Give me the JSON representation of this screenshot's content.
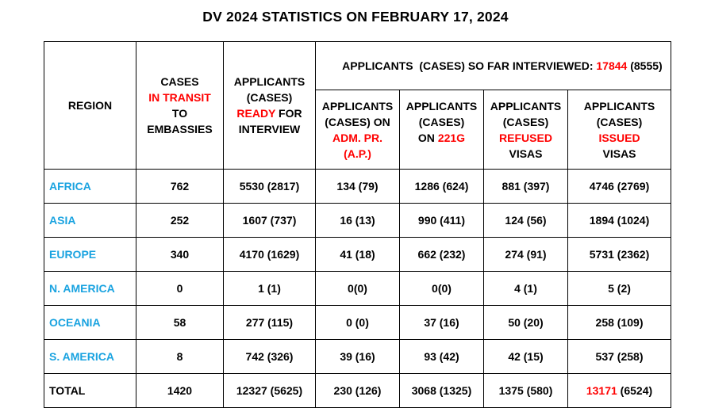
{
  "title": "DV 2024 STATISTICS ON FEBRUARY 17, 2024",
  "headers": {
    "region": "REGION",
    "transit": {
      "l1": "CASES",
      "l2": "IN TRANSIT",
      "l3": "TO",
      "l4": "EMBASSIES"
    },
    "ready": {
      "l1": "APPLICANTS",
      "l2": "(CASES)",
      "l3a": "READY",
      "l3b": " FOR",
      "l4": "INTERVIEW"
    },
    "interviewed": {
      "prefix": "APPLICANTS  (CASES) SO FAR INTERVIEWED: ",
      "value": "17844",
      "suffix": " (8555)"
    },
    "ap": {
      "l1": "APPLICANTS",
      "l2": "(CASES) ON",
      "l3": "ADM. PR.",
      "l4": "(A.P.)"
    },
    "g221": {
      "l1": "APPLICANTS",
      "l2": "(CASES)",
      "l3a": "ON ",
      "l3b": "221G"
    },
    "refused": {
      "l1": "APPLICANTS",
      "l2": "(CASES)",
      "l3": "REFUSED",
      "l4": "VISAS"
    },
    "issued": {
      "l1": "APPLICANTS",
      "l2": "(CASES)",
      "l3": "ISSUED",
      "l4": "VISAS"
    }
  },
  "rows": [
    {
      "region": "AFRICA",
      "transit": "762",
      "ready": "5530 (2817)",
      "ap": "134 (79)",
      "g221": "1286 (624)",
      "refused": "881 (397)",
      "issued": "4746 (2769)"
    },
    {
      "region": "ASIA",
      "transit": "252",
      "ready": "1607 (737)",
      "ap": "16 (13)",
      "g221": "990 (411)",
      "refused": "124 (56)",
      "issued": "1894 (1024)"
    },
    {
      "region": "EUROPE",
      "transit": "340",
      "ready": "4170 (1629)",
      "ap": "41 (18)",
      "g221": "662 (232)",
      "refused": "274 (91)",
      "issued": "5731 (2362)"
    },
    {
      "region": "N. AMERICA",
      "transit": "0",
      "ready": "1 (1)",
      "ap": "0(0)",
      "g221": "0(0)",
      "refused": "4 (1)",
      "issued": "5 (2)"
    },
    {
      "region": "OCEANIA",
      "transit": "58",
      "ready": "277 (115)",
      "ap": "0 (0)",
      "g221": "37 (16)",
      "refused": "50 (20)",
      "issued": "258 (109)"
    },
    {
      "region": "S. AMERICA",
      "transit": "8",
      "ready": "742 (326)",
      "ap": "39 (16)",
      "g221": "93 (42)",
      "refused": "42 (15)",
      "issued": "537 (258)"
    }
  ],
  "total": {
    "label": "TOTAL",
    "transit": "1420",
    "ready": "12327 (5625)",
    "ap": "230 (126)",
    "g221": "3068 (1325)",
    "refused": "1375 (580)",
    "issued_value": "13171",
    "issued_suffix": " (6524)"
  },
  "colors": {
    "region_blue": "#1aa3e0",
    "highlight_red": "#ff0000"
  }
}
